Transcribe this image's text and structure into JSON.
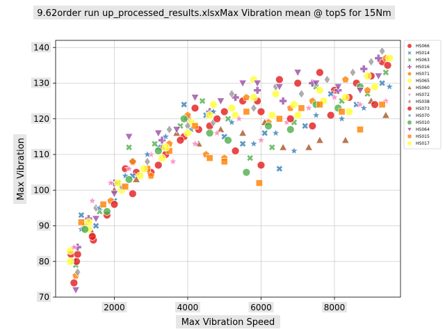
{
  "chart_data": {
    "type": "scatter",
    "title": "9.62order run up_processed_results.xlsxMax Vibration mean @ topS for 15Nm",
    "xlabel": "Max Vibration Speed",
    "ylabel": "Max Vibration",
    "xlim": [
      400,
      9800
    ],
    "ylim": [
      70,
      142
    ],
    "xticks": [
      2000,
      4000,
      6000,
      8000
    ],
    "yticks": [
      70,
      80,
      90,
      100,
      110,
      120,
      130,
      140
    ],
    "tick_labels_x": [
      "2000",
      "4000",
      "6000",
      "8000"
    ],
    "tick_labels_y": [
      "70",
      "80",
      "90",
      "100",
      "110",
      "120",
      "130",
      "140"
    ],
    "grid": true,
    "legend_position": "outside-top-right",
    "series": [
      {
        "name": "HS066",
        "color": "#e41a1c",
        "marker": "circle",
        "points": [
          [
            820,
            82
          ],
          [
            900,
            74
          ],
          [
            1000,
            82
          ],
          [
            1430,
            86
          ],
          [
            1800,
            93
          ],
          [
            2300,
            106
          ],
          [
            2600,
            105
          ],
          [
            3000,
            105
          ],
          [
            3400,
            110
          ],
          [
            3900,
            115
          ],
          [
            4200,
            123
          ],
          [
            4600,
            118
          ],
          [
            5000,
            122
          ],
          [
            5500,
            125
          ],
          [
            6000,
            122
          ],
          [
            6500,
            131
          ],
          [
            7000,
            130
          ],
          [
            7600,
            133
          ],
          [
            8000,
            128
          ],
          [
            8600,
            130
          ],
          [
            9000,
            132
          ],
          [
            9300,
            136
          ]
        ]
      },
      {
        "name": "HS014",
        "color": "#377eb8",
        "marker": "x",
        "points": [
          [
            900,
            80
          ],
          [
            1100,
            93
          ],
          [
            1500,
            90
          ],
          [
            2000,
            97
          ],
          [
            2500,
            104
          ],
          [
            3200,
            112
          ],
          [
            3900,
            124
          ],
          [
            4500,
            121
          ],
          [
            5000,
            115
          ],
          [
            5500,
            113
          ],
          [
            6100,
            116
          ],
          [
            6500,
            106
          ],
          [
            7200,
            118
          ],
          [
            7900,
            127
          ],
          [
            8600,
            124
          ],
          [
            9300,
            130
          ]
        ]
      },
      {
        "name": "HS063",
        "color": "#4daf4a",
        "marker": "x",
        "points": [
          [
            950,
            79
          ],
          [
            1200,
            89
          ],
          [
            1600,
            94
          ],
          [
            2100,
            102
          ],
          [
            2400,
            112
          ],
          [
            3100,
            113
          ],
          [
            3800,
            118
          ],
          [
            4400,
            125
          ],
          [
            5100,
            120
          ],
          [
            5700,
            109
          ],
          [
            6300,
            112
          ],
          [
            6900,
            119
          ],
          [
            7500,
            129
          ],
          [
            8200,
            125
          ],
          [
            8900,
            127
          ],
          [
            9400,
            133
          ]
        ]
      },
      {
        "name": "HS016",
        "color": "#984ea3",
        "marker": "plus",
        "points": [
          [
            1000,
            84
          ],
          [
            1300,
            92
          ],
          [
            2000,
            102
          ],
          [
            2500,
            108
          ],
          [
            3300,
            114
          ],
          [
            4000,
            120
          ],
          [
            4600,
            122
          ],
          [
            5300,
            126
          ],
          [
            5900,
            128
          ],
          [
            6600,
            125
          ],
          [
            7400,
            130
          ],
          [
            8100,
            128
          ],
          [
            8800,
            134
          ],
          [
            9200,
            137
          ]
        ]
      },
      {
        "name": "HS071",
        "color": "#ff7f00",
        "marker": "pentagon",
        "points": [
          [
            950,
            76
          ],
          [
            1200,
            90
          ],
          [
            1900,
            97
          ],
          [
            2500,
            108
          ],
          [
            3000,
            104
          ],
          [
            3500,
            113
          ],
          [
            4000,
            121
          ],
          [
            4500,
            110
          ],
          [
            5000,
            109
          ],
          [
            5600,
            126
          ],
          [
            6200,
            119
          ],
          [
            6800,
            123
          ],
          [
            7400,
            125
          ],
          [
            8300,
            131
          ],
          [
            8900,
            128
          ],
          [
            9400,
            137
          ]
        ]
      },
      {
        "name": "HS065",
        "color": "#ffff33",
        "marker": "circle",
        "points": [
          [
            800,
            83
          ],
          [
            1300,
            89
          ],
          [
            2200,
            100
          ],
          [
            2700,
            104
          ],
          [
            3300,
            109
          ],
          [
            4100,
            119
          ],
          [
            4700,
            124
          ],
          [
            5300,
            121
          ],
          [
            5800,
            131
          ],
          [
            6400,
            127
          ],
          [
            7000,
            121
          ],
          [
            7700,
            125
          ],
          [
            8400,
            122
          ],
          [
            9100,
            129
          ]
        ]
      },
      {
        "name": "HS060",
        "color": "#a65628",
        "marker": "triangle",
        "points": [
          [
            1400,
            88
          ],
          [
            2000,
            100
          ],
          [
            2600,
            103
          ],
          [
            3300,
            112
          ],
          [
            3700,
            116
          ],
          [
            4300,
            113
          ],
          [
            4900,
            117
          ],
          [
            5500,
            116
          ],
          [
            6100,
            119
          ],
          [
            6600,
            112
          ],
          [
            7300,
            112
          ],
          [
            7600,
            114
          ],
          [
            8300,
            114
          ],
          [
            9000,
            125
          ],
          [
            9400,
            121
          ]
        ]
      },
      {
        "name": "HS072",
        "color": "#f781bf",
        "marker": "star",
        "points": [
          [
            900,
            84
          ],
          [
            1400,
            97
          ],
          [
            1900,
            102
          ],
          [
            2400,
            106
          ],
          [
            3000,
            110
          ],
          [
            3600,
            108
          ],
          [
            4200,
            113
          ],
          [
            4800,
            116
          ],
          [
            5400,
            120
          ],
          [
            6000,
            114
          ],
          [
            6700,
            119
          ],
          [
            7300,
            123
          ],
          [
            8000,
            126
          ],
          [
            8700,
            124
          ],
          [
            9400,
            125
          ]
        ]
      },
      {
        "name": "HS038",
        "color": "#999999",
        "marker": "diamond",
        "points": [
          [
            1000,
            77
          ],
          [
            1500,
            95
          ],
          [
            2200,
            101
          ],
          [
            2900,
            108
          ],
          [
            3500,
            117
          ],
          [
            4000,
            118
          ],
          [
            4700,
            119
          ],
          [
            5200,
            127
          ],
          [
            5800,
            123
          ],
          [
            6400,
            129
          ],
          [
            7100,
            127
          ],
          [
            7800,
            131
          ],
          [
            8500,
            133
          ],
          [
            9000,
            136
          ],
          [
            9300,
            139
          ]
        ]
      },
      {
        "name": "HS073",
        "color": "#e41a1c",
        "marker": "circle",
        "points": [
          [
            970,
            80
          ],
          [
            1400,
            87
          ],
          [
            2000,
            96
          ],
          [
            2500,
            99
          ],
          [
            3200,
            107
          ],
          [
            3800,
            114
          ],
          [
            4300,
            117
          ],
          [
            4800,
            120
          ],
          [
            5300,
            111
          ],
          [
            5900,
            125
          ],
          [
            6000,
            107
          ],
          [
            6800,
            120
          ],
          [
            7400,
            118
          ],
          [
            7900,
            121
          ],
          [
            8400,
            126
          ],
          [
            9100,
            124
          ],
          [
            9450,
            135
          ]
        ]
      },
      {
        "name": "HS070",
        "color": "#377eb8",
        "marker": "star",
        "points": [
          [
            1100,
            89
          ],
          [
            1600,
            95
          ],
          [
            2300,
            104
          ],
          [
            2900,
            110
          ],
          [
            3400,
            115
          ],
          [
            4100,
            117
          ],
          [
            4700,
            122
          ],
          [
            5200,
            119
          ],
          [
            5800,
            113
          ],
          [
            6400,
            116
          ],
          [
            6900,
            111
          ],
          [
            7500,
            121
          ],
          [
            8200,
            120
          ],
          [
            8800,
            123
          ],
          [
            9500,
            129
          ]
        ]
      },
      {
        "name": "HS010",
        "color": "#4daf4a",
        "marker": "circle",
        "points": [
          [
            1200,
            89
          ],
          [
            1800,
            94
          ],
          [
            2400,
            103
          ],
          [
            3200,
            111
          ],
          [
            3900,
            120
          ],
          [
            4600,
            116
          ],
          [
            5100,
            114
          ],
          [
            5600,
            105
          ],
          [
            6200,
            118
          ],
          [
            6800,
            117
          ],
          [
            7500,
            124
          ],
          [
            8100,
            123
          ],
          [
            8700,
            129
          ]
        ]
      },
      {
        "name": "HS064",
        "color": "#984ea3",
        "marker": "tri-down",
        "points": [
          [
            950,
            72
          ],
          [
            1500,
            92
          ],
          [
            2000,
            99
          ],
          [
            2400,
            115
          ],
          [
            3200,
            116
          ],
          [
            3700,
            117
          ],
          [
            4200,
            126
          ],
          [
            4900,
            125
          ],
          [
            5500,
            130
          ],
          [
            5900,
            130
          ],
          [
            6500,
            129
          ],
          [
            7000,
            133
          ],
          [
            7500,
            130
          ],
          [
            8100,
            129
          ],
          [
            8700,
            128
          ],
          [
            9200,
            132
          ]
        ]
      },
      {
        "name": "HS015",
        "color": "#ff7f00",
        "marker": "square",
        "points": [
          [
            1100,
            91
          ],
          [
            1700,
            96
          ],
          [
            2300,
            101
          ],
          [
            2900,
            106
          ],
          [
            3500,
            111
          ],
          [
            4200,
            118
          ],
          [
            4600,
            109
          ],
          [
            5000,
            108
          ],
          [
            5600,
            122
          ],
          [
            5950,
            102
          ],
          [
            6500,
            120
          ],
          [
            7100,
            123
          ],
          [
            7600,
            124
          ],
          [
            8200,
            122
          ],
          [
            8700,
            117
          ],
          [
            9300,
            124
          ]
        ]
      },
      {
        "name": "HS017",
        "color": "#ffff33",
        "marker": "circle",
        "points": [
          [
            800,
            80
          ],
          [
            1300,
            91
          ],
          [
            2100,
            102
          ],
          [
            2800,
            106
          ],
          [
            3400,
            112
          ],
          [
            4000,
            116
          ],
          [
            4600,
            121
          ],
          [
            5200,
            123
          ],
          [
            5800,
            126
          ],
          [
            6300,
            121
          ],
          [
            6900,
            124
          ],
          [
            7600,
            128
          ],
          [
            8300,
            126
          ],
          [
            8900,
            132
          ],
          [
            9500,
            137
          ]
        ]
      }
    ]
  }
}
